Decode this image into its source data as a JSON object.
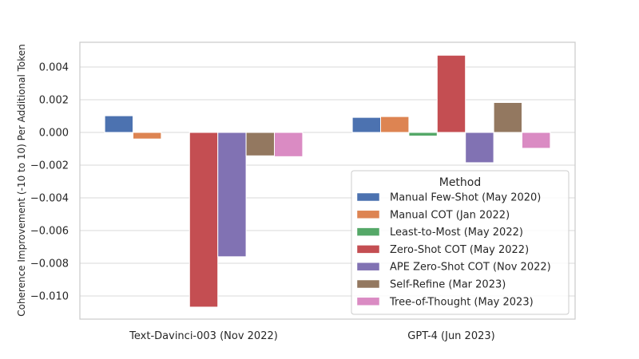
{
  "chart_data": {
    "type": "bar",
    "title": "",
    "xlabel": "",
    "ylabel": "Coherence Improvement (-10 to 10) Per Additional Token",
    "categories": [
      "Text-Davinci-003 (Nov 2022)",
      "GPT-4 (Jun 2023)"
    ],
    "ylim": [
      -0.0115,
      0.0055
    ],
    "yticks": [
      0.004,
      0.002,
      0.0,
      -0.002,
      -0.004,
      -0.006,
      -0.008,
      -0.01
    ],
    "ytick_labels": [
      "0.004",
      "0.002",
      "0.000",
      "−0.002",
      "−0.004",
      "−0.006",
      "−0.008",
      "−0.010"
    ],
    "grid": true,
    "legend_title": "Method",
    "legend_position": "lower-right",
    "series": [
      {
        "name": "Manual Few-Shot (May 2020)",
        "color": "#4c72b0",
        "values": [
          0.00102,
          0.00092
        ]
      },
      {
        "name": "Manual COT (Jan 2022)",
        "color": "#dd8452",
        "values": [
          -0.0004,
          0.00097
        ]
      },
      {
        "name": "Least-to-Most (May 2022)",
        "color": "#55a868",
        "values": [
          0.0,
          -0.00022
        ]
      },
      {
        "name": "Zero-Shot COT (May 2022)",
        "color": "#c44e52",
        "values": [
          -0.01068,
          0.00472
        ]
      },
      {
        "name": "APE Zero-Shot COT (Nov 2022)",
        "color": "#8172b3",
        "values": [
          -0.0076,
          -0.00185
        ]
      },
      {
        "name": "Self-Refine (Mar 2023)",
        "color": "#937860",
        "values": [
          -0.00143,
          0.00183
        ]
      },
      {
        "name": "Tree-of-Thought (May 2023)",
        "color": "#da8bc3",
        "values": [
          -0.00148,
          -0.00097
        ]
      }
    ]
  }
}
